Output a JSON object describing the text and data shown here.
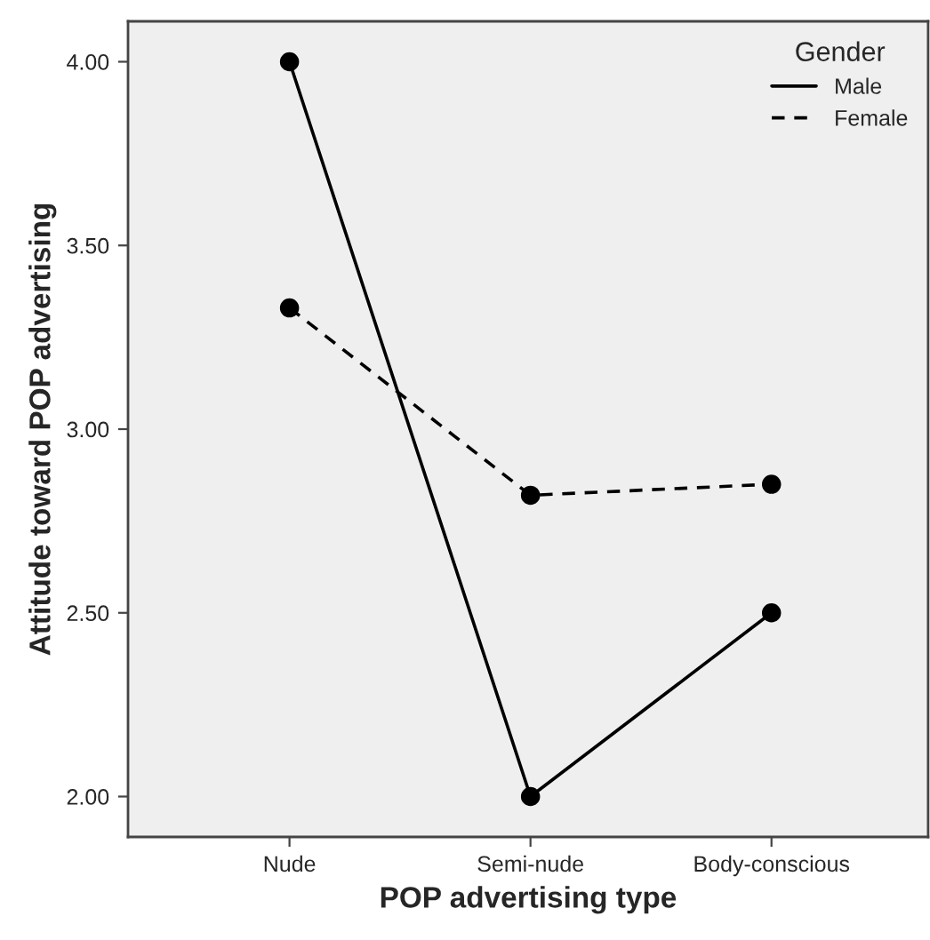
{
  "chart_data": {
    "type": "line",
    "xlabel": "POP advertising type",
    "ylabel": "Attitude toward POP advertising",
    "legend_title": "Gender",
    "categories": [
      "Nude",
      "Semi-nude",
      "Body-conscious"
    ],
    "series": [
      {
        "name": "Male",
        "color": "#000000",
        "line_style": "solid",
        "values": [
          4.0,
          2.0,
          2.5
        ]
      },
      {
        "name": "Female",
        "color": "#000000",
        "line_style": "dashed",
        "values": [
          3.33,
          2.82,
          2.85
        ]
      }
    ],
    "ylim": [
      1.89,
      4.11
    ],
    "yticks": [
      {
        "value": 2,
        "label": "2.00"
      },
      {
        "value": 2.5,
        "label": "2.50"
      },
      {
        "value": 3,
        "label": "3.00"
      },
      {
        "value": 3.5,
        "label": "3.50"
      },
      {
        "value": 4,
        "label": "4.00"
      }
    ],
    "marker": "circle",
    "grid": false,
    "legend": "top right"
  }
}
